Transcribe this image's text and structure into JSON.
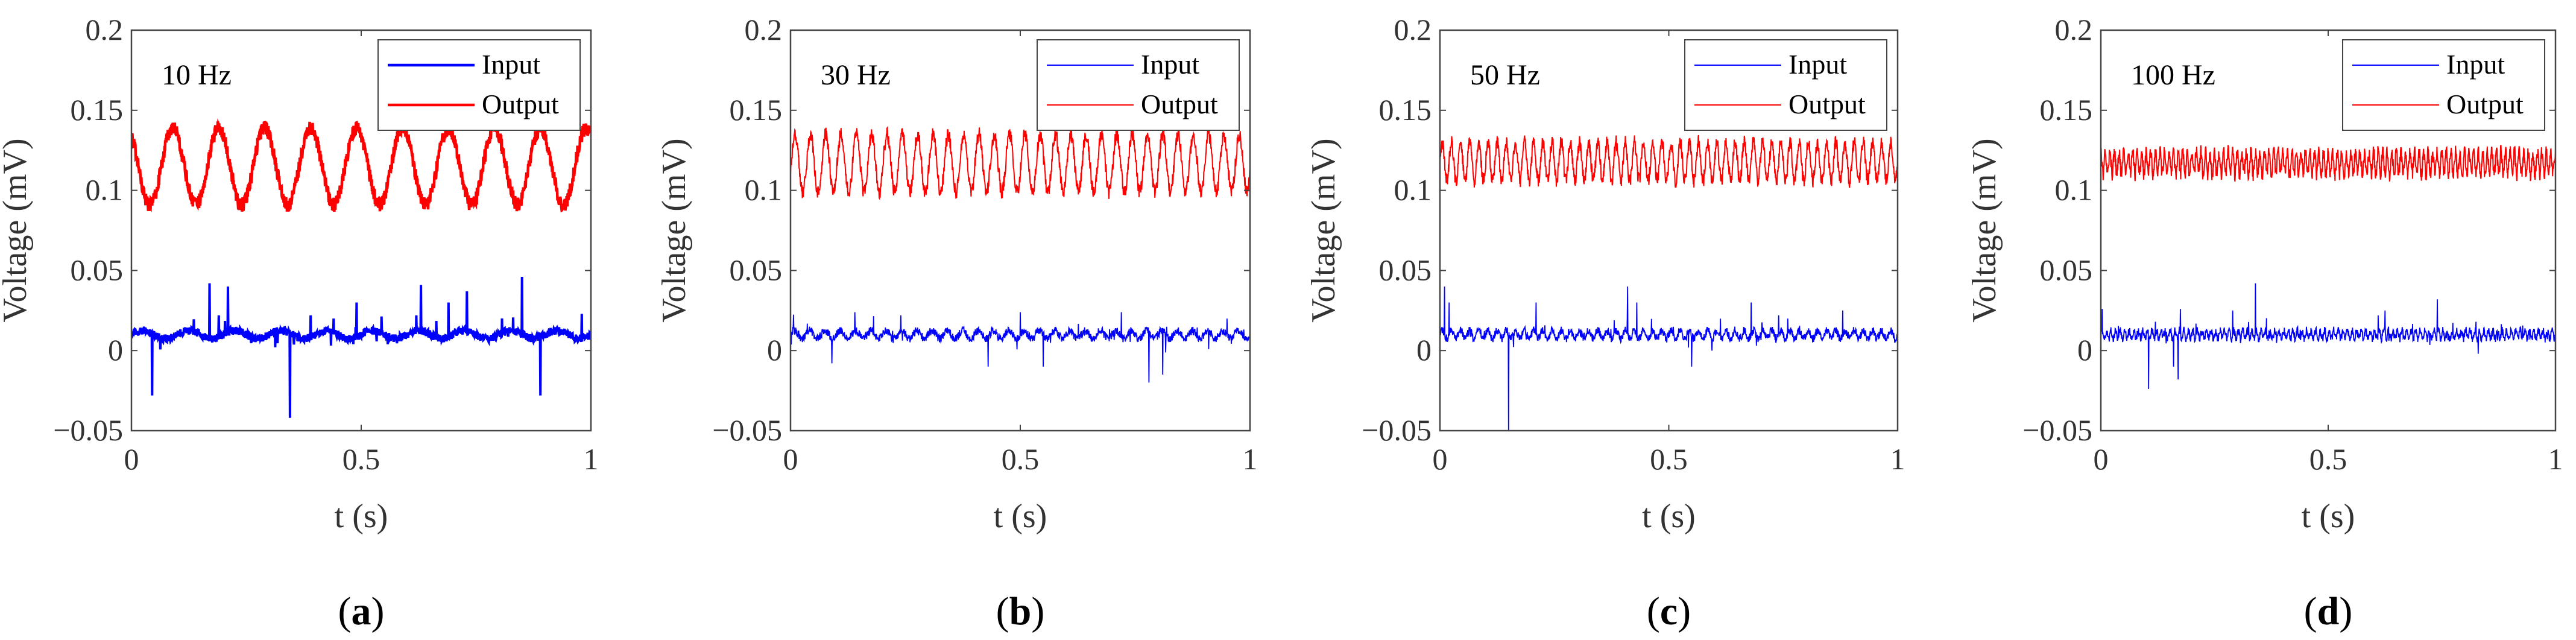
{
  "chart_data": [
    {
      "type": "line",
      "panel_label": "a",
      "annotation": "10 Hz",
      "xlabel": "t (s)",
      "ylabel": "Voltage (mV)",
      "xlim": [
        0,
        1
      ],
      "ylim": [
        -0.05,
        0.2
      ],
      "xticks": [
        "0",
        "0.5",
        "1"
      ],
      "yticks": [
        "−0.05",
        "0",
        "0.05",
        "0.1",
        "0.15",
        "0.2"
      ],
      "grid": false,
      "legend_position": "top-right",
      "line_style": "thick",
      "series": [
        {
          "name": "Input",
          "color": "#0000ff",
          "baseline": 0.01,
          "spikes": [
            [
              0.045,
              -0.028
            ],
            [
              0.17,
              0.042
            ],
            [
              0.21,
              0.04
            ],
            [
              0.19,
              0.022
            ],
            [
              0.345,
              -0.042
            ],
            [
              0.39,
              0.022
            ],
            [
              0.44,
              0.02
            ],
            [
              0.49,
              0.03
            ],
            [
              0.62,
              0.022
            ],
            [
              0.63,
              0.041
            ],
            [
              0.69,
              0.03
            ],
            [
              0.73,
              0.037
            ],
            [
              0.85,
              0.046
            ],
            [
              0.89,
              -0.028
            ],
            [
              0.98,
              0.023
            ]
          ]
        },
        {
          "name": "Output",
          "color": "#ff0000",
          "mean": 0.115,
          "amplitude": 0.024,
          "frequency_hz": 10,
          "first_peak_s": 0.09
        }
      ]
    },
    {
      "type": "line",
      "panel_label": "b",
      "annotation": "30 Hz",
      "xlabel": "t (s)",
      "ylabel": "Voltage (mV)",
      "xlim": [
        0,
        1
      ],
      "ylim": [
        -0.05,
        0.2
      ],
      "xticks": [
        "0",
        "0.5",
        "1"
      ],
      "yticks": [
        "−0.05",
        "0",
        "0.05",
        "0.1",
        "0.15",
        "0.2"
      ],
      "grid": false,
      "legend_position": "top-right",
      "line_style": "thin",
      "series": [
        {
          "name": "Input",
          "color": "#0000ff",
          "baseline": 0.01,
          "spikes": [
            [
              0.09,
              -0.008
            ],
            [
              0.14,
              0.024
            ],
            [
              0.24,
              0.022
            ],
            [
              0.43,
              -0.01
            ],
            [
              0.5,
              0.024
            ],
            [
              0.55,
              -0.01
            ],
            [
              0.72,
              0.024
            ],
            [
              0.78,
              -0.02
            ],
            [
              0.81,
              -0.015
            ],
            [
              0.95,
              0.02
            ]
          ]
        },
        {
          "name": "Output",
          "color": "#ff0000",
          "mean": 0.117,
          "amplitude": 0.018,
          "frequency_hz": 30,
          "first_peak_s": 0.01
        }
      ]
    },
    {
      "type": "line",
      "panel_label": "c",
      "annotation": "50 Hz",
      "xlabel": "t (s)",
      "ylabel": "Voltage (mV)",
      "xlim": [
        0,
        1
      ],
      "ylim": [
        -0.05,
        0.2
      ],
      "xticks": [
        "0",
        "0.5",
        "1"
      ],
      "yticks": [
        "−0.05",
        "0",
        "0.05",
        "0.1",
        "0.15",
        "0.2"
      ],
      "grid": false,
      "legend_position": "top-right",
      "line_style": "thin",
      "series": [
        {
          "name": "Input",
          "color": "#0000ff",
          "baseline": 0.01,
          "spikes": [
            [
              0.01,
              0.04
            ],
            [
              0.02,
              0.03
            ],
            [
              0.15,
              -0.05
            ],
            [
              0.21,
              0.03
            ],
            [
              0.41,
              0.04
            ],
            [
              0.43,
              0.03
            ],
            [
              0.55,
              -0.01
            ],
            [
              0.68,
              0.03
            ],
            [
              0.74,
              0.022
            ],
            [
              0.76,
              0.02
            ],
            [
              0.88,
              0.025
            ]
          ]
        },
        {
          "name": "Output",
          "color": "#ff0000",
          "mean": 0.118,
          "amplitude": 0.012,
          "frequency_hz": 50,
          "first_peak_s": 0.005
        }
      ]
    },
    {
      "type": "line",
      "panel_label": "d",
      "annotation": "100 Hz",
      "xlabel": "t (s)",
      "ylabel": "Voltage (mV)",
      "xlim": [
        0,
        1
      ],
      "ylim": [
        -0.05,
        0.2
      ],
      "xticks": [
        "0",
        "0.5",
        "1"
      ],
      "yticks": [
        "−0.05",
        "0",
        "0.05",
        "0.1",
        "0.15",
        "0.2"
      ],
      "grid": false,
      "legend_position": "top-right",
      "line_style": "thin",
      "series": [
        {
          "name": "Input",
          "color": "#0000ff",
          "baseline": 0.01,
          "spikes": [
            [
              0.003,
              0.026
            ],
            [
              0.105,
              -0.024
            ],
            [
              0.12,
              0.018
            ],
            [
              0.16,
              -0.01
            ],
            [
              0.17,
              -0.018
            ],
            [
              0.175,
              0.026
            ],
            [
              0.29,
              0.025
            ],
            [
              0.34,
              0.042
            ],
            [
              0.61,
              0.022
            ],
            [
              0.625,
              0.025
            ],
            [
              0.74,
              0.032
            ],
            [
              0.83,
              -0.002
            ]
          ]
        },
        {
          "name": "Output",
          "color": "#ff0000",
          "mean": 0.117,
          "amplitude": 0.007,
          "frequency_hz": 100,
          "first_peak_s": 0.0
        }
      ]
    }
  ]
}
